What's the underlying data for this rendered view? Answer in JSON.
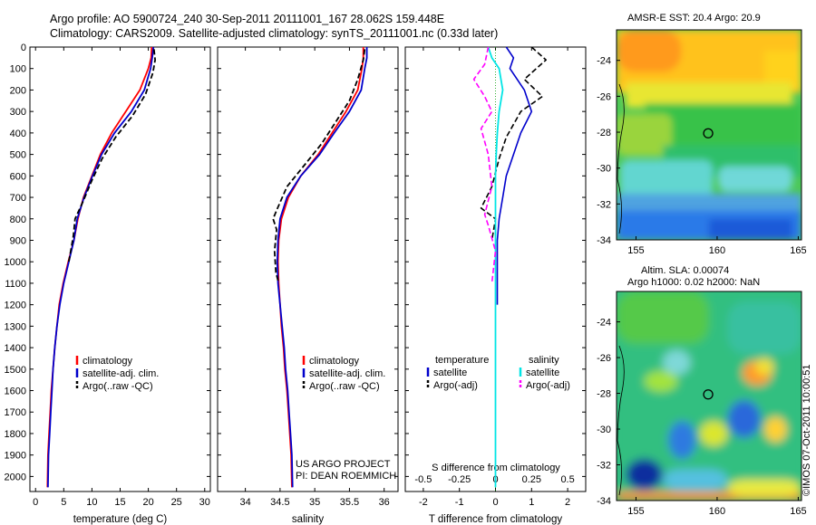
{
  "title_line1": "Argo profile: AO 5900724_240 30-Sep-2011 20111001_167 28.062S 159.448E",
  "title_line2": "Climatology: CARS2009. Satellite-adjusted climatology: synTS_20111001.nc (0.33d later)",
  "sst_title": "AMSR-E SST: 20.4 Argo: 20.9",
  "sla_title1": "Altim. SLA: 0.00074",
  "sla_title2": "Argo h1000: 0.02 h2000: NaN",
  "timestamp": "©IMOS 07-Oct-2011 10:00:51",
  "colors": {
    "climatology": "#ff0000",
    "satellite": "#0000cc",
    "argo": "#000000",
    "salinity_satellite": "#00e5e5",
    "salinity_argo": "#ff00ff"
  },
  "chart_data": [
    {
      "type": "line",
      "panel": "temperature",
      "xlabel": "temperature (deg C)",
      "xlim": [
        -1,
        31
      ],
      "ylim": [
        2070,
        0
      ],
      "x_ticks": [
        0,
        5,
        10,
        15,
        20,
        25,
        30
      ],
      "y_ticks": [
        0,
        100,
        200,
        300,
        400,
        500,
        600,
        700,
        800,
        900,
        1000,
        1100,
        1200,
        1300,
        1400,
        1500,
        1600,
        1700,
        1800,
        1900,
        2000
      ],
      "legend": [
        "climatology",
        "satellite-adj. clim.",
        "Argo(..raw -QC)"
      ],
      "series": [
        {
          "name": "climatology",
          "color": "climatology",
          "dash": "",
          "width": 1.8,
          "x": [
            20.6,
            20.5,
            20.0,
            18.5,
            16.0,
            13.5,
            11.5,
            10.0,
            8.5,
            7.5,
            6.8,
            5.8,
            4.9,
            4.2,
            3.8,
            3.4,
            3.1,
            2.8,
            2.6,
            2.4,
            2.2,
            2.1
          ],
          "y": [
            0,
            50,
            100,
            200,
            300,
            400,
            500,
            600,
            700,
            800,
            900,
            1000,
            1100,
            1200,
            1300,
            1400,
            1500,
            1600,
            1700,
            1800,
            1900,
            2050
          ]
        },
        {
          "name": "satellite-adj. clim.",
          "color": "satellite",
          "dash": "",
          "width": 1.8,
          "x": [
            20.9,
            20.7,
            20.4,
            19.3,
            17.0,
            14.0,
            11.7,
            10.1,
            8.6,
            7.4,
            6.8,
            5.9,
            5.0,
            4.3,
            3.8,
            3.4,
            3.1,
            2.9,
            2.7,
            2.5,
            2.3,
            2.2
          ],
          "y": [
            0,
            50,
            100,
            200,
            300,
            400,
            500,
            600,
            700,
            800,
            900,
            1000,
            1100,
            1200,
            1300,
            1400,
            1500,
            1600,
            1700,
            1800,
            1900,
            2050
          ]
        },
        {
          "name": "Argo(..raw -QC)",
          "color": "argo",
          "dash": "6,3",
          "width": 1.8,
          "x": [
            21.0,
            21.2,
            20.8,
            19.5,
            17.2,
            14.2,
            11.8,
            10.0,
            8.4,
            7.0,
            6.7,
            5.9
          ],
          "y": [
            10,
            60,
            120,
            220,
            320,
            420,
            520,
            620,
            720,
            800,
            880,
            1000
          ]
        }
      ]
    },
    {
      "type": "line",
      "panel": "salinity",
      "xlabel": "salinity",
      "xlim": [
        33.6,
        36.2
      ],
      "ylim": [
        2070,
        0
      ],
      "x_ticks": [
        34,
        34.5,
        35,
        35.5,
        36
      ],
      "legend": [
        "climatology",
        "satellite-adj. clim.",
        "Argo(..raw -QC)"
      ],
      "series": [
        {
          "name": "climatology",
          "color": "climatology",
          "dash": "",
          "width": 1.8,
          "x": [
            35.7,
            35.7,
            35.68,
            35.62,
            35.45,
            35.25,
            35.05,
            34.8,
            34.62,
            34.52,
            34.48,
            34.47,
            34.48,
            34.5,
            34.52,
            34.55,
            34.57,
            34.6,
            34.62,
            34.64,
            34.66,
            34.67
          ],
          "y": [
            0,
            50,
            100,
            200,
            300,
            400,
            500,
            600,
            700,
            800,
            900,
            1000,
            1100,
            1200,
            1300,
            1400,
            1500,
            1600,
            1700,
            1800,
            1900,
            2050
          ]
        },
        {
          "name": "satellite-adj. clim.",
          "color": "satellite",
          "dash": "",
          "width": 1.8,
          "x": [
            35.75,
            35.75,
            35.72,
            35.67,
            35.5,
            35.28,
            35.07,
            34.8,
            34.6,
            34.5,
            34.47,
            34.46,
            34.47,
            34.5,
            34.53,
            34.56,
            34.58,
            34.61,
            34.63,
            34.65,
            34.67,
            34.68
          ],
          "y": [
            0,
            50,
            100,
            200,
            300,
            400,
            500,
            600,
            700,
            800,
            900,
            1000,
            1100,
            1200,
            1300,
            1400,
            1500,
            1600,
            1700,
            1800,
            1900,
            2050
          ]
        },
        {
          "name": "Argo(..raw -QC)",
          "color": "argo",
          "dash": "6,3",
          "width": 1.8,
          "x": [
            35.72,
            35.7,
            35.62,
            35.5,
            35.3,
            35.1,
            34.85,
            34.6,
            34.45,
            34.4,
            34.45,
            34.42,
            34.44,
            34.48
          ],
          "y": [
            10,
            60,
            150,
            250,
            350,
            450,
            550,
            650,
            760,
            800,
            850,
            950,
            1050,
            1100
          ]
        }
      ],
      "annotation": [
        "US ARGO PROJECT",
        "PI: DEAN ROEMMICH"
      ]
    },
    {
      "type": "line",
      "panel": "difference",
      "xlabel": "T difference from climatology",
      "xlabel2": "S difference from climatology",
      "xlim": [
        -2.5,
        2.5
      ],
      "ylim": [
        2070,
        0
      ],
      "x_ticks": [
        -2,
        -1,
        0,
        1,
        2
      ],
      "x_tick_labels": [
        "-2",
        "-1",
        "0",
        "1",
        "2"
      ],
      "x2_ticks": [
        -0.5,
        -0.25,
        0,
        0.25,
        0.5
      ],
      "x2_tick_labels": [
        "-0.5",
        "-0.25",
        "0",
        "0.25",
        "0.5"
      ],
      "legend_temperature": [
        "temperature",
        "satellite",
        "Argo(-adj)"
      ],
      "legend_salinity": [
        "salinity",
        "satellite",
        "Argo(-adj)"
      ],
      "series": [
        {
          "name": "temperature satellite",
          "color": "satellite",
          "dash": "",
          "width": 1.6,
          "x": [
            0.3,
            0.5,
            0.4,
            0.8,
            1.0,
            0.7,
            0.5,
            0.3,
            0.2,
            0.1,
            0.05,
            0.05,
            0.05,
            0.05
          ],
          "y": [
            0,
            50,
            100,
            200,
            300,
            400,
            500,
            600,
            700,
            800,
            900,
            1000,
            1100,
            1200
          ]
        },
        {
          "name": "temperature Argo(-adj)",
          "color": "argo",
          "dash": "6,3",
          "width": 1.6,
          "x": [
            1.0,
            1.4,
            0.8,
            1.3,
            0.7,
            0.3,
            0.1,
            -0.1,
            -0.4,
            0.0,
            -0.1
          ],
          "y": [
            0,
            60,
            150,
            230,
            300,
            420,
            520,
            650,
            750,
            800,
            900
          ]
        },
        {
          "name": "salinity satellite",
          "color": "salinity_satellite",
          "dash": "",
          "width": 1.8,
          "x": [
            -0.2,
            -0.1,
            0.1,
            0.2,
            0.1,
            0.05,
            0.02,
            0.0,
            0.0,
            0.0,
            0.0,
            0.0,
            0.0,
            0.0
          ],
          "y": [
            0,
            50,
            100,
            200,
            300,
            400,
            500,
            600,
            700,
            800,
            900,
            1000,
            1500,
            2050
          ]
        },
        {
          "name": "salinity Argo(-adj)",
          "color": "salinity_argo",
          "dash": "6,3",
          "width": 1.6,
          "x": [
            -0.2,
            -0.3,
            -0.6,
            -0.3,
            -0.1,
            -0.4,
            -0.2,
            -0.1,
            -0.3,
            -0.2,
            0.0,
            -0.1
          ],
          "y": [
            0,
            80,
            150,
            230,
            300,
            380,
            500,
            650,
            780,
            830,
            950,
            1100
          ]
        }
      ]
    },
    {
      "type": "heatmap",
      "panel": "sst-map",
      "title": "AMSR-E SST: 20.4 Argo: 20.9",
      "xlim": [
        153.8,
        165.2
      ],
      "ylim": [
        -34,
        -22.3
      ],
      "x_ticks": [
        155,
        160,
        165
      ],
      "y_ticks": [
        -24,
        -26,
        -28,
        -30,
        -32,
        -34
      ],
      "argo_position": [
        159.448,
        -28.062
      ]
    },
    {
      "type": "heatmap",
      "panel": "sla-map",
      "title": "Altim. SLA: 0.00074",
      "xlim": [
        153.8,
        165.2
      ],
      "ylim": [
        -34,
        -22.3
      ],
      "x_ticks": [
        155,
        160,
        165
      ],
      "y_ticks": [
        -24,
        -26,
        -28,
        -30,
        -32,
        -34
      ],
      "argo_position": [
        159.448,
        -28.062
      ]
    }
  ]
}
